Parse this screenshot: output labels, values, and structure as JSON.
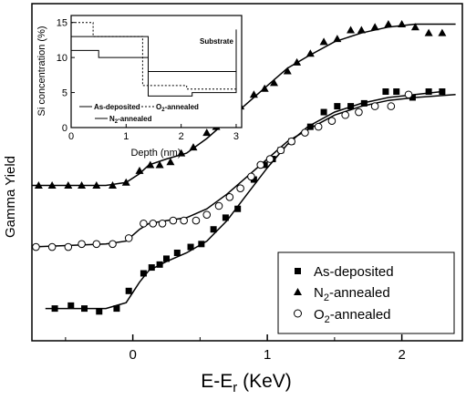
{
  "chart_data": [
    {
      "type": "scatter",
      "title": "",
      "xlabel": "E-E",
      "xlabel_sub": "r",
      "xlabel_unit": " (KeV)",
      "ylabel": "Gamma Yield",
      "xlim": [
        -0.75,
        2.45
      ],
      "x_ticks": [
        0,
        1,
        2
      ],
      "x_tick_labels": [
        "0",
        "1",
        "2"
      ],
      "y_ticks_shown": false,
      "legend_position": "bottom-right",
      "series": [
        {
          "name": "As-deposited",
          "marker": "square-filled",
          "points": [
            [
              -0.58,
              0.11
            ],
            [
              -0.46,
              0.12
            ],
            [
              -0.36,
              0.11
            ],
            [
              -0.25,
              0.1
            ],
            [
              -0.12,
              0.11
            ],
            [
              -0.03,
              0.17
            ],
            [
              0.08,
              0.23
            ],
            [
              0.14,
              0.25
            ],
            [
              0.2,
              0.26
            ],
            [
              0.25,
              0.28
            ],
            [
              0.33,
              0.3
            ],
            [
              0.43,
              0.32
            ],
            [
              0.51,
              0.33
            ],
            [
              0.6,
              0.38
            ],
            [
              0.69,
              0.42
            ],
            [
              0.78,
              0.45
            ],
            [
              0.9,
              0.55
            ],
            [
              0.98,
              0.6
            ],
            [
              1.04,
              0.62
            ],
            [
              1.1,
              0.65
            ],
            [
              1.18,
              0.68
            ],
            [
              1.32,
              0.73
            ],
            [
              1.42,
              0.78
            ],
            [
              1.52,
              0.8
            ],
            [
              1.62,
              0.8
            ],
            [
              1.72,
              0.81
            ],
            [
              1.88,
              0.85
            ],
            [
              1.96,
              0.85
            ],
            [
              2.08,
              0.83
            ],
            [
              2.2,
              0.85
            ],
            [
              2.3,
              0.85
            ]
          ],
          "fit": [
            [
              -0.65,
              0.11
            ],
            [
              -0.2,
              0.11
            ],
            [
              -0.05,
              0.13
            ],
            [
              0.05,
              0.2
            ],
            [
              0.12,
              0.24
            ],
            [
              0.25,
              0.27
            ],
            [
              0.4,
              0.3
            ],
            [
              0.55,
              0.34
            ],
            [
              0.7,
              0.41
            ],
            [
              0.85,
              0.5
            ],
            [
              1.0,
              0.59
            ],
            [
              1.15,
              0.67
            ],
            [
              1.3,
              0.73
            ],
            [
              1.5,
              0.78
            ],
            [
              1.7,
              0.81
            ],
            [
              1.9,
              0.83
            ],
            [
              2.1,
              0.84
            ],
            [
              2.3,
              0.85
            ]
          ]
        },
        {
          "name": "N2-annealed",
          "name_base": "N",
          "name_sub": "2",
          "name_rest": "-annealed",
          "marker": "triangle-filled",
          "points": [
            [
              -0.7,
              0.53
            ],
            [
              -0.6,
              0.53
            ],
            [
              -0.48,
              0.53
            ],
            [
              -0.38,
              0.53
            ],
            [
              -0.27,
              0.53
            ],
            [
              -0.15,
              0.53
            ],
            [
              -0.05,
              0.54
            ],
            [
              0.05,
              0.58
            ],
            [
              0.13,
              0.6
            ],
            [
              0.2,
              0.6
            ],
            [
              0.28,
              0.61
            ],
            [
              0.36,
              0.64
            ],
            [
              0.45,
              0.66
            ],
            [
              0.55,
              0.71
            ],
            [
              0.62,
              0.73
            ],
            [
              0.7,
              0.76
            ],
            [
              0.8,
              0.8
            ],
            [
              0.9,
              0.84
            ],
            [
              0.98,
              0.86
            ],
            [
              1.05,
              0.88
            ],
            [
              1.15,
              0.92
            ],
            [
              1.22,
              0.95
            ],
            [
              1.32,
              0.98
            ],
            [
              1.42,
              1.02
            ],
            [
              1.52,
              1.03
            ],
            [
              1.62,
              1.06
            ],
            [
              1.7,
              1.06
            ],
            [
              1.8,
              1.07
            ],
            [
              1.9,
              1.08
            ],
            [
              2.0,
              1.08
            ],
            [
              2.1,
              1.07
            ],
            [
              2.2,
              1.05
            ],
            [
              2.3,
              1.05
            ]
          ],
          "fit": [
            [
              -0.75,
              0.53
            ],
            [
              -0.2,
              0.53
            ],
            [
              -0.05,
              0.54
            ],
            [
              0.05,
              0.57
            ],
            [
              0.12,
              0.6
            ],
            [
              0.25,
              0.62
            ],
            [
              0.4,
              0.64
            ],
            [
              0.55,
              0.69
            ],
            [
              0.7,
              0.75
            ],
            [
              0.85,
              0.81
            ],
            [
              1.0,
              0.87
            ],
            [
              1.15,
              0.93
            ],
            [
              1.3,
              0.97
            ],
            [
              1.5,
              1.02
            ],
            [
              1.7,
              1.05
            ],
            [
              1.9,
              1.07
            ],
            [
              2.1,
              1.08
            ],
            [
              2.4,
              1.08
            ]
          ]
        },
        {
          "name": "O2-annealed",
          "name_base": "O",
          "name_sub": "2",
          "name_rest": "-annealed",
          "marker": "circle-open",
          "points": [
            [
              -0.72,
              0.32
            ],
            [
              -0.6,
              0.32
            ],
            [
              -0.48,
              0.32
            ],
            [
              -0.38,
              0.33
            ],
            [
              -0.27,
              0.33
            ],
            [
              -0.15,
              0.33
            ],
            [
              -0.03,
              0.35
            ],
            [
              0.08,
              0.4
            ],
            [
              0.15,
              0.4
            ],
            [
              0.22,
              0.4
            ],
            [
              0.3,
              0.41
            ],
            [
              0.38,
              0.41
            ],
            [
              0.47,
              0.41
            ],
            [
              0.55,
              0.43
            ],
            [
              0.64,
              0.46
            ],
            [
              0.72,
              0.49
            ],
            [
              0.8,
              0.52
            ],
            [
              0.88,
              0.56
            ],
            [
              0.95,
              0.6
            ],
            [
              1.02,
              0.62
            ],
            [
              1.1,
              0.65
            ],
            [
              1.18,
              0.68
            ],
            [
              1.28,
              0.71
            ],
            [
              1.38,
              0.73
            ],
            [
              1.48,
              0.75
            ],
            [
              1.58,
              0.77
            ],
            [
              1.68,
              0.78
            ],
            [
              1.8,
              0.8
            ],
            [
              1.92,
              0.8
            ],
            [
              2.05,
              0.84
            ]
          ],
          "fit": [
            [
              -0.75,
              0.32
            ],
            [
              -0.2,
              0.33
            ],
            [
              -0.05,
              0.34
            ],
            [
              0.05,
              0.38
            ],
            [
              0.12,
              0.4
            ],
            [
              0.25,
              0.41
            ],
            [
              0.4,
              0.42
            ],
            [
              0.55,
              0.45
            ],
            [
              0.7,
              0.5
            ],
            [
              0.85,
              0.56
            ],
            [
              1.0,
              0.62
            ],
            [
              1.15,
              0.68
            ],
            [
              1.3,
              0.72
            ],
            [
              1.5,
              0.77
            ],
            [
              1.7,
              0.8
            ],
            [
              1.9,
              0.82
            ],
            [
              2.1,
              0.83
            ],
            [
              2.4,
              0.84
            ]
          ]
        }
      ]
    },
    {
      "type": "line",
      "title": "",
      "xlabel": "Depth (nm)",
      "ylabel": "Si concentration (%)",
      "xlim": [
        0,
        3.1
      ],
      "ylim": [
        0,
        16
      ],
      "x_ticks": [
        0,
        1,
        2,
        3
      ],
      "y_ticks": [
        0,
        5,
        10,
        15
      ],
      "annotation": "Substrate",
      "legend_position": "bottom-center",
      "series": [
        {
          "name": "As-deposited",
          "style": "solid",
          "x": [
            0,
            0.5,
            0.5,
            1.4,
            1.4,
            2.2,
            2.2,
            3.0,
            3.0
          ],
          "y": [
            13,
            13,
            13,
            13,
            4.5,
            4.5,
            5.0,
            5.0,
            14
          ]
        },
        {
          "name": "O2-annealed",
          "name_base": "O",
          "name_sub": "2",
          "name_rest": "-annealed",
          "style": "dotted",
          "x": [
            0,
            0.4,
            0.4,
            1.3,
            1.3,
            2.1,
            2.1,
            3.0
          ],
          "y": [
            15,
            15,
            13,
            13,
            6,
            6,
            5.5,
            5.5
          ]
        },
        {
          "name": "N2-annealed",
          "name_base": "N",
          "name_sub": "2",
          "name_rest": "-annealed",
          "style": "solid",
          "x": [
            0,
            0.5,
            0.5,
            1.4,
            1.4,
            3.0
          ],
          "y": [
            11,
            11,
            10,
            10,
            8,
            8
          ]
        }
      ]
    }
  ]
}
